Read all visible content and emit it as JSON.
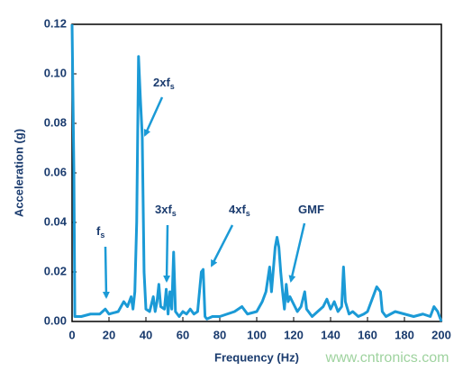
{
  "chart_data": {
    "type": "line",
    "xlabel": "Frequency (Hz)",
    "ylabel": "Acceleration (g)",
    "x": [
      0,
      1,
      1.5,
      5,
      10,
      15,
      18,
      20,
      25,
      28,
      30,
      32,
      33,
      34,
      35,
      36,
      37,
      38,
      39,
      40,
      42,
      44,
      45,
      46,
      47,
      48,
      50,
      51,
      52,
      53,
      54,
      55,
      56,
      58,
      60,
      62,
      64,
      66,
      68,
      70,
      71,
      72,
      73,
      76,
      80,
      84,
      88,
      92,
      95,
      100,
      103,
      105,
      107,
      108,
      110,
      111,
      112,
      113,
      114,
      115,
      116,
      117,
      118,
      120,
      122,
      124,
      126,
      127,
      130,
      133,
      136,
      138,
      140,
      142,
      144,
      146,
      147,
      148,
      150,
      152,
      155,
      158,
      160,
      163,
      165,
      167,
      168,
      170,
      175,
      180,
      185,
      190,
      194,
      196,
      198,
      200
    ],
    "series": [
      {
        "color": "#1b9ad6",
        "values": [
          0.12,
          0.06,
          0.002,
          0.002,
          0.003,
          0.003,
          0.005,
          0.003,
          0.004,
          0.008,
          0.006,
          0.01,
          0.005,
          0.012,
          0.04,
          0.107,
          0.09,
          0.075,
          0.02,
          0.005,
          0.004,
          0.01,
          0.004,
          0.008,
          0.015,
          0.006,
          0.005,
          0.013,
          0.003,
          0.012,
          0.005,
          0.028,
          0.004,
          0.002,
          0.004,
          0.003,
          0.005,
          0.003,
          0.004,
          0.02,
          0.021,
          0.002,
          0.001,
          0.002,
          0.002,
          0.003,
          0.004,
          0.006,
          0.003,
          0.004,
          0.008,
          0.012,
          0.022,
          0.012,
          0.03,
          0.034,
          0.03,
          0.02,
          0.012,
          0.005,
          0.015,
          0.008,
          0.01,
          0.007,
          0.004,
          0.006,
          0.012,
          0.005,
          0.002,
          0.004,
          0.006,
          0.009,
          0.005,
          0.008,
          0.004,
          0.006,
          0.022,
          0.008,
          0.003,
          0.004,
          0.002,
          0.003,
          0.004,
          0.01,
          0.014,
          0.012,
          0.004,
          0.002,
          0.004,
          0.003,
          0.002,
          0.003,
          0.002,
          0.006,
          0.004,
          0
        ]
      }
    ],
    "xlim": [
      0,
      200
    ],
    "xticks": [
      0,
      20,
      40,
      60,
      80,
      100,
      120,
      140,
      160,
      180,
      200
    ],
    "ylim": [
      0,
      0.12
    ],
    "yticks": [
      {
        "value": 0,
        "label": "0.00"
      },
      {
        "value": 0.02,
        "label": "0.02"
      },
      {
        "value": 0.04,
        "label": "0.04"
      },
      {
        "value": 0.06,
        "label": "0.06"
      },
      {
        "value": 0.08,
        "label": "0.08"
      },
      {
        "value": 0.1,
        "label": "0.10"
      },
      {
        "value": 0.12,
        "label": "0.12"
      }
    ],
    "annotations": [
      {
        "text": "f",
        "sub": "s"
      },
      {
        "text": "2xf",
        "sub": "s"
      },
      {
        "text": "3xf",
        "sub": "s"
      },
      {
        "text": "4xf",
        "sub": "s"
      },
      {
        "text": "GMF"
      }
    ],
    "watermark": "www.cntronics.com"
  }
}
